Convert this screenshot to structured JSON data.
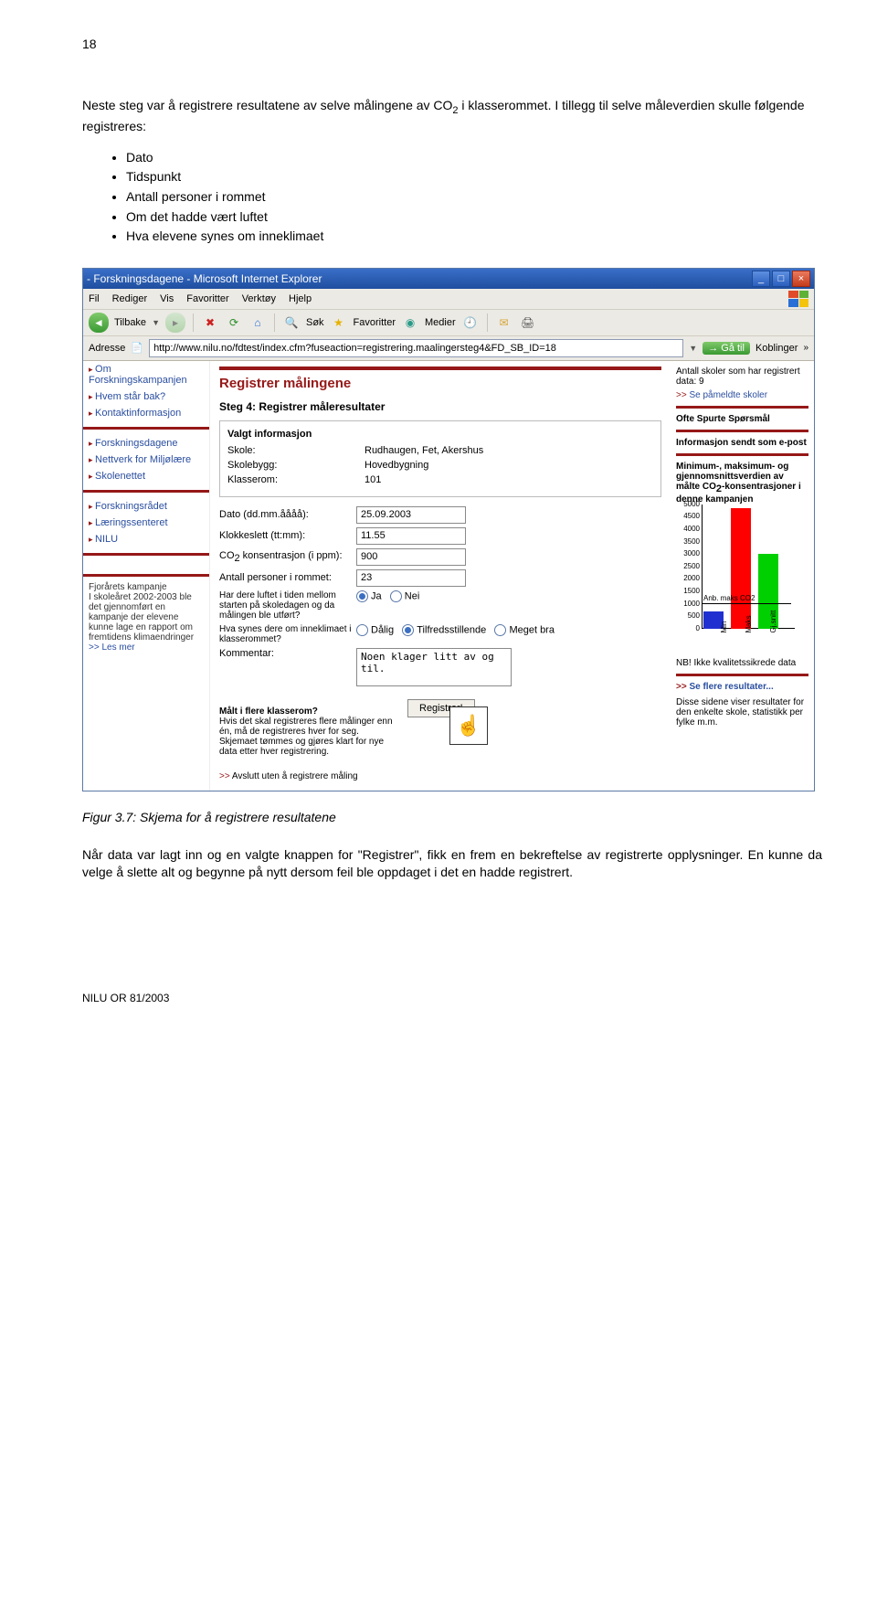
{
  "page_number": "18",
  "para1_pre": "Neste steg var å registrere resultatene av selve målingene av CO",
  "para1_sub": "2",
  "para1_post": " i klasserommet. I tillegg til selve måleverdien skulle følgende registreres:",
  "bullets": [
    "Dato",
    "Tidspunkt",
    "Antall personer i rommet",
    "Om det hadde vært luftet",
    "Hva elevene synes om inneklimaet"
  ],
  "browser": {
    "title": " - Forskningsdagene - Microsoft Internet Explorer",
    "window_min": "_",
    "window_max": "□",
    "window_close": "×",
    "menus": [
      "Fil",
      "Rediger",
      "Vis",
      "Favoritter",
      "Verktøy",
      "Hjelp"
    ],
    "tb_back": "Tilbake",
    "tb_sok": "Søk",
    "tb_fav": "Favoritter",
    "tb_med": "Medier",
    "addr_label": "Adresse",
    "addr_url": "http://www.nilu.no/fdtest/index.cfm?fuseaction=registrering.maalingersteg4&FD_SB_ID=18",
    "go": "Gå til",
    "koblinger": "Koblinger"
  },
  "sidebar": {
    "items1": [
      "Om Forskningskampanjen",
      "Hvem står bak?",
      "Kontaktinformasjon"
    ],
    "items2": [
      "Forskningsdagene",
      "Nettverk for Miljølære",
      "Skolenettet"
    ],
    "items3": [
      "Forskningsrådet",
      "Læringssenteret",
      "NILU"
    ],
    "block_title": "Fjorårets kampanje",
    "block_text": "I skoleåret 2002-2003 ble det gjennomført en kampanje der elevene kunne lage en rapport om fremtidens klimaendringer",
    "block_link": ">> Les mer"
  },
  "form": {
    "top_title": "Registrer målingene",
    "step": "Steg 4: Registrer måleresultater",
    "info_head": "Valgt informasjon",
    "labels": {
      "skole": "Skole:",
      "skolebygg": "Skolebygg:",
      "klasserom": "Klasserom:",
      "dato": "Dato (dd.mm.åååå):",
      "klokke": "Klokkeslett (tt:mm):",
      "co2_pre": "CO",
      "co2_sub": "2",
      "co2_post": " konsentrasjon (i ppm):",
      "personer": "Antall personer i rommet:",
      "luftet": "Har dere luftet i tiden mellom starten på skoledagen og da målingen ble utført?",
      "synes": "Hva synes dere om inneklimaet i klasserommet?",
      "kommentar": "Kommentar:"
    },
    "values": {
      "skole": "Rudhaugen, Fet, Akershus",
      "skolebygg": "Hovedbygning",
      "klasserom": "101",
      "dato": "25.09.2003",
      "klokke": "11.55",
      "co2": "900",
      "personer": "23",
      "kommentar": "Noen klager litt av og til."
    },
    "radios": {
      "ja": "Ja",
      "nei": "Nei",
      "darlig": "Dålig",
      "tilfreds": "Tilfredsstillende",
      "megetbra": "Meget bra"
    },
    "flere_head": "Målt i flere klasserom?",
    "flere_text": "Hvis det skal registreres flere målinger enn én, må de registreres hver for seg. Skjemaet tømmes og gjøres klart for nye data etter hver registrering.",
    "reg_btn": "Registrer!",
    "avslutt": "Avslutt uten å registrere måling"
  },
  "right": {
    "top_text": "Antall skoler som har registrert data: 9",
    "link1": "Se påmeldte skoler",
    "oss": "Ofte Spurte Spørsmål",
    "epost": "Informasjon sendt som e-post",
    "stat_pre": "Minimum-, maksimum- og gjennomsnittsverdien av målte CO",
    "stat_sub": "2",
    "stat_post": "-konsentrasjoner i denne kampanjen",
    "nb": "NB! Ikke kvalitetssikrede data",
    "link2": "Se flere resultater...",
    "foot": "Disse sidene viser resultater for den enkelte skole, statistikk per fylke m.m."
  },
  "chart": {
    "ymax": 5000,
    "ytick_step": 500,
    "anb_value": 1000,
    "anb_label": "Anb. maks CO2",
    "bars": [
      {
        "label": "Min",
        "value": 700,
        "color": "#2030d0"
      },
      {
        "label": "Maks",
        "value": 4850,
        "color": "#ff0000"
      },
      {
        "label": "Gj.snitt",
        "value": 3000,
        "color": "#00d000"
      }
    ],
    "background": "#ffffff",
    "axis_color": "#000000",
    "tick_fontsize": 8
  },
  "caption": "Figur 3.7:  Skjema for å registrere resultatene",
  "para2": "Når data var lagt inn og en valgte knappen for \"Registrer\", fikk en frem en bekreftelse av registrerte opplysninger. En kunne da velge å slette alt og begynne på nytt dersom feil ble oppdaget i det en hadde registrert.",
  "footer": "NILU OR 81/2003"
}
